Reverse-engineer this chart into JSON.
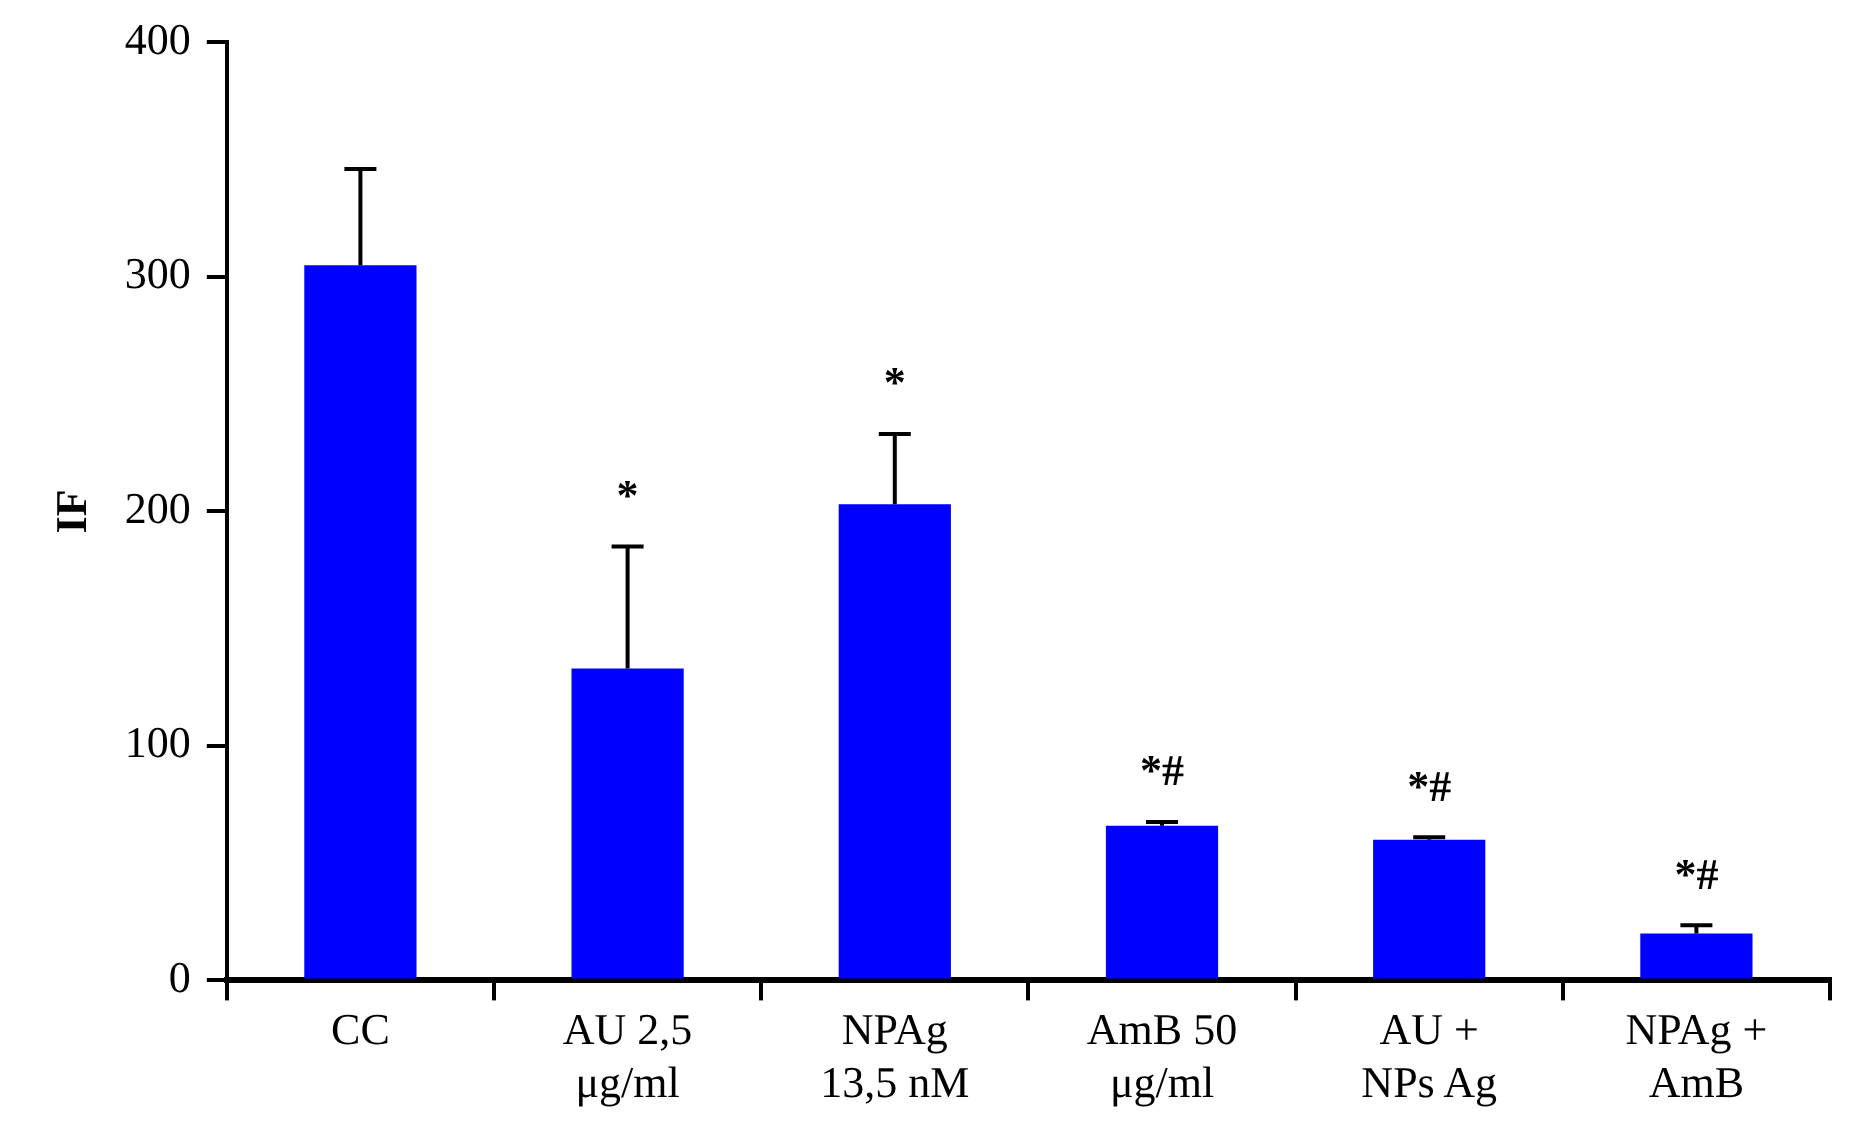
{
  "chart_data": {
    "type": "bar",
    "ylabel": "IF",
    "categories": [
      "CC",
      "AU 2,5\nμg/ml",
      "NPAg\n13,5 nM",
      "AmB 50\nμg/ml",
      "AU +\nNPs Ag",
      "NPAg +\nAmB"
    ],
    "values": [
      305,
      133,
      203,
      66,
      60,
      20
    ],
    "errors": [
      [
        305,
        346
      ],
      [
        133,
        185
      ],
      [
        203,
        233
      ],
      [
        66,
        67.5
      ],
      [
        60,
        61
      ],
      [
        20,
        23.5
      ]
    ],
    "color": "#0000ff",
    "ylim": [
      0,
      400
    ],
    "yticks": [
      0,
      100,
      200,
      300,
      400
    ],
    "grid": false,
    "legend": false,
    "annotations": [
      {
        "text": "*",
        "x": "AU 2,5\nμg/ml",
        "y": 185
      },
      {
        "text": "*",
        "x": "NPAg\n13,5 nM",
        "y": 203
      },
      {
        "text": "*#",
        "x": "AmB 50\nμg/ml",
        "y": 66
      },
      {
        "text": "*#",
        "x": "AU +\nNPs Ag",
        "y": 60
      },
      {
        "text": "*#",
        "x": "NPAg +\nAmB",
        "y": 20
      }
    ]
  }
}
